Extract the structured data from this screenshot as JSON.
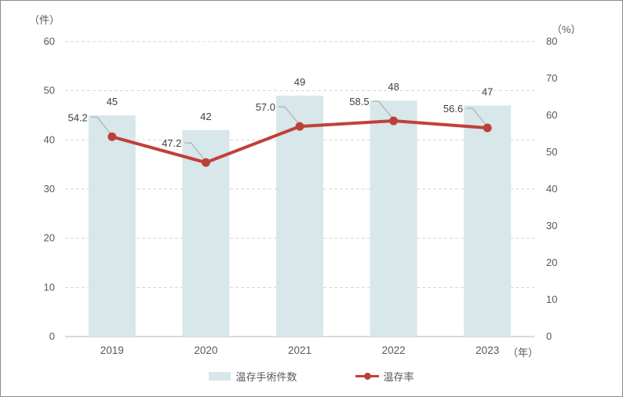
{
  "page": {
    "background": "#ffffff",
    "border_color": "#8c8c8c"
  },
  "chart_data": {
    "type": "bar",
    "subtype": "combo-bar-line-dual-axis",
    "categories": [
      "2019",
      "2020",
      "2021",
      "2022",
      "2023"
    ],
    "series": [
      {
        "name": "温存手術件数",
        "type": "bar",
        "axis": "left",
        "values": [
          45,
          42,
          49,
          48,
          47
        ],
        "labels": [
          "45",
          "42",
          "49",
          "48",
          "47"
        ],
        "color": "#d7e7ea"
      },
      {
        "name": "温存率",
        "type": "line",
        "axis": "right",
        "values": [
          54.2,
          47.2,
          57.0,
          58.5,
          56.6
        ],
        "labels": [
          "54.2",
          "47.2",
          "57.0",
          "58.5",
          "56.6"
        ],
        "color": "#c0413a",
        "marker_color": "#b7423a"
      }
    ],
    "left_axis": {
      "title": "（件）",
      "min": 0,
      "max": 60,
      "ticks": [
        "0",
        "10",
        "20",
        "30",
        "40",
        "50",
        "60"
      ]
    },
    "right_axis": {
      "title": "（%）",
      "min": 0,
      "max": 80,
      "ticks": [
        "0",
        "10",
        "20",
        "30",
        "40",
        "50",
        "60",
        "70",
        "80"
      ]
    },
    "x_axis": {
      "suffix": "（年）"
    },
    "grid": {
      "style": "dashed",
      "color": "#d6d6d6",
      "axis_line_color": "#b3b3b3"
    },
    "label_colors": {
      "data_label": "#404040",
      "tick_label": "#595959",
      "leader_line": "#a6a6a6"
    },
    "legend": {
      "position": "bottom",
      "items": [
        "温存手術件数",
        "温存率"
      ]
    }
  }
}
